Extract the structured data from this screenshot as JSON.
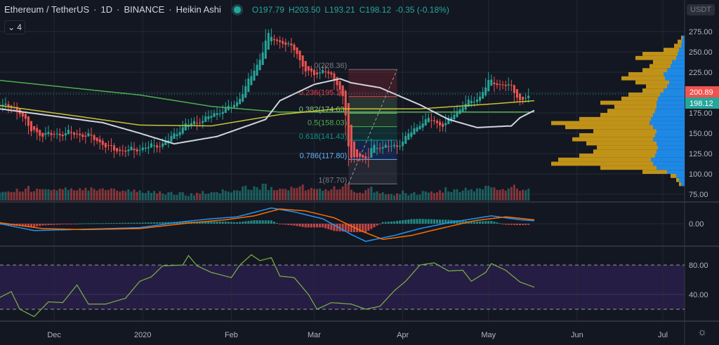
{
  "header": {
    "symbol": "Ethereum / TetherUS",
    "interval": "1D",
    "exchange": "BINANCE",
    "chart_type": "Heikin Ashi",
    "open": "O197.79",
    "high": "H203.50",
    "low": "L193.21",
    "close": "C198.12",
    "change": "-0.35 (-0.18%)",
    "indicators_count": "4",
    "currency": "USDT"
  },
  "colors": {
    "background": "#131722",
    "up": "#26a69a",
    "down": "#ef5350",
    "sma_white": "#d1d4dc",
    "ma_yellow": "#c9c332",
    "ma_green": "#4caf50",
    "macd": "#2196f3",
    "signal": "#ff6d00",
    "rsi": "#7cb342",
    "rsi_band": "#2a1f4a",
    "vp_blue": "#1e88e5",
    "vp_yellow": "#d4a017"
  },
  "chart_data": {
    "type": "candlestick",
    "title": "Ethereum / TetherUS 1D BINANCE Heikin Ashi",
    "day_origin": "2019-11-01",
    "close_path": [
      [
        11,
        186
      ],
      [
        18,
        176
      ],
      [
        21,
        154
      ],
      [
        26,
        148
      ],
      [
        36,
        150
      ],
      [
        43,
        145
      ],
      [
        48,
        133
      ],
      [
        53,
        128
      ],
      [
        58,
        130
      ],
      [
        68,
        137
      ],
      [
        75,
        159
      ],
      [
        82,
        167
      ],
      [
        87,
        176
      ],
      [
        93,
        185
      ],
      [
        97,
        210
      ],
      [
        102,
        245
      ],
      [
        104,
        270
      ],
      [
        109,
        262
      ],
      [
        114,
        253
      ],
      [
        117,
        228
      ],
      [
        120,
        222
      ],
      [
        124,
        228
      ],
      [
        129,
        210
      ],
      [
        131,
        190
      ],
      [
        133,
        115
      ],
      [
        136,
        125
      ],
      [
        139,
        115
      ],
      [
        141,
        135
      ],
      [
        145,
        133
      ],
      [
        150,
        135
      ],
      [
        154,
        150
      ],
      [
        158,
        163
      ],
      [
        161,
        167
      ],
      [
        166,
        159
      ],
      [
        170,
        176
      ],
      [
        173,
        185
      ],
      [
        178,
        193
      ],
      [
        182,
        215
      ],
      [
        185,
        210
      ],
      [
        189,
        208
      ],
      [
        193,
        189
      ],
      [
        196,
        198.12
      ]
    ],
    "ma_white": [
      [
        11,
        180
      ],
      [
        47,
        163
      ],
      [
        60,
        150
      ],
      [
        72,
        137
      ],
      [
        87,
        146
      ],
      [
        104,
        167
      ],
      [
        109,
        190
      ],
      [
        121,
        210
      ],
      [
        130,
        217
      ],
      [
        134,
        212
      ],
      [
        144,
        206
      ],
      [
        158,
        185
      ],
      [
        168,
        167
      ],
      [
        178,
        157
      ],
      [
        190,
        159
      ],
      [
        193,
        169
      ],
      [
        198,
        178
      ]
    ],
    "ma_yellow": [
      [
        11,
        184
      ],
      [
        36,
        172
      ],
      [
        60,
        160
      ],
      [
        85,
        159
      ],
      [
        109,
        173
      ],
      [
        129,
        180
      ],
      [
        158,
        180
      ],
      [
        183,
        186
      ],
      [
        198,
        190
      ]
    ],
    "ma_green": [
      [
        11,
        215
      ],
      [
        60,
        197
      ],
      [
        85,
        183
      ],
      [
        109,
        176
      ],
      [
        134,
        176
      ],
      [
        158,
        176
      ],
      [
        198,
        176
      ]
    ],
    "price_axis": {
      "ticks": [
        "275.00",
        "250.00",
        "225.00",
        "200.89",
        "198.12",
        "175.00",
        "150.00",
        "125.00",
        "100.00",
        "75.00"
      ],
      "ylim": [
        75,
        275
      ]
    },
    "price_labels": {
      "high_marker": "200.89",
      "last_price": "198.12"
    },
    "time_axis": {
      "labels": [
        {
          "t": "Dec",
          "d": 30
        },
        {
          "t": "2020",
          "d": 61
        },
        {
          "t": "Feb",
          "d": 92
        },
        {
          "t": "Mar",
          "d": 121
        },
        {
          "t": "Apr",
          "d": 152
        },
        {
          "t": "May",
          "d": 182
        },
        {
          "t": "Jun",
          "d": 213
        },
        {
          "t": "Jul",
          "d": 243
        }
      ]
    },
    "fibonacci": {
      "start_day": 133,
      "end_day": 150,
      "levels": [
        {
          "ratio": "0",
          "price": 228.36,
          "label": "0(228.36)",
          "color": "#787b86"
        },
        {
          "ratio": "0.236",
          "price": 195.16,
          "label": "0.236(195.16)",
          "color": "#f23645"
        },
        {
          "ratio": "0.382",
          "price": 174.63,
          "label": "0.382(174.63)",
          "color": "#81c784"
        },
        {
          "ratio": "0.5",
          "price": 158.03,
          "label": "0.5(158.03)",
          "color": "#4caf50"
        },
        {
          "ratio": "0.618",
          "price": 141.43,
          "label": "0.618(141.43)",
          "color": "#089981"
        },
        {
          "ratio": "0.786",
          "price": 117.8,
          "label": "0.786(117.80)",
          "color": "#64b5f6"
        },
        {
          "ratio": "1",
          "price": 87.7,
          "label": "1(87.70)",
          "color": "#787b86"
        }
      ]
    },
    "volume_profile": {
      "price_start": 85,
      "step": 5,
      "blue": [
        5,
        8,
        12,
        25,
        40,
        45,
        48,
        42,
        40,
        38,
        40,
        45,
        42,
        40,
        45,
        50,
        48,
        45,
        42,
        40,
        40,
        38,
        35,
        30,
        25,
        22,
        28,
        30,
        25,
        20,
        18,
        12,
        10,
        8,
        5,
        4,
        3,
        0,
        0,
        0,
        0,
        0
      ],
      "total": [
        8,
        12,
        20,
        60,
        120,
        190,
        180,
        150,
        130,
        125,
        140,
        160,
        150,
        130,
        170,
        190,
        150,
        120,
        110,
        100,
        120,
        90,
        80,
        60,
        55,
        70,
        90,
        80,
        60,
        50,
        45,
        70,
        60,
        30,
        15,
        10,
        5,
        0,
        0,
        0,
        0,
        0
      ]
    },
    "macd": {
      "zero_label": "0.00",
      "macd_line": [
        [
          11,
          0
        ],
        [
          23,
          -7
        ],
        [
          36,
          -6
        ],
        [
          60,
          -4
        ],
        [
          75,
          2
        ],
        [
          85,
          5
        ],
        [
          94,
          7
        ],
        [
          106,
          16
        ],
        [
          114,
          12
        ],
        [
          124,
          5
        ],
        [
          134,
          -11
        ],
        [
          139,
          -18
        ],
        [
          149,
          -12
        ],
        [
          158,
          -5
        ],
        [
          168,
          1
        ],
        [
          183,
          8
        ],
        [
          193,
          4
        ],
        [
          198,
          3
        ]
      ],
      "signal_line": [
        [
          11,
          1
        ],
        [
          26,
          -5
        ],
        [
          40,
          -6
        ],
        [
          60,
          -5
        ],
        [
          78,
          1
        ],
        [
          90,
          4
        ],
        [
          100,
          8
        ],
        [
          109,
          15
        ],
        [
          118,
          13
        ],
        [
          128,
          6
        ],
        [
          138,
          -8
        ],
        [
          145,
          -16
        ],
        [
          155,
          -12
        ],
        [
          165,
          -5
        ],
        [
          177,
          3
        ],
        [
          188,
          7
        ],
        [
          198,
          4
        ]
      ]
    },
    "rsi": {
      "upper": 80,
      "lower": 20,
      "ticks": [
        "80.00",
        "40.00"
      ],
      "values": [
        [
          11,
          36
        ],
        [
          15,
          44
        ],
        [
          18,
          20
        ],
        [
          23,
          10
        ],
        [
          28,
          30
        ],
        [
          33,
          29
        ],
        [
          38,
          53
        ],
        [
          42,
          27
        ],
        [
          48,
          27
        ],
        [
          55,
          35
        ],
        [
          60,
          58
        ],
        [
          64,
          64
        ],
        [
          68,
          79
        ],
        [
          75,
          80
        ],
        [
          77,
          93
        ],
        [
          80,
          79
        ],
        [
          85,
          70
        ],
        [
          92,
          63
        ],
        [
          95,
          80
        ],
        [
          99,
          94
        ],
        [
          102,
          86
        ],
        [
          106,
          90
        ],
        [
          109,
          65
        ],
        [
          114,
          63
        ],
        [
          119,
          40
        ],
        [
          122,
          20
        ],
        [
          127,
          29
        ],
        [
          134,
          27
        ],
        [
          139,
          20
        ],
        [
          144,
          24
        ],
        [
          149,
          45
        ],
        [
          153,
          58
        ],
        [
          158,
          80
        ],
        [
          163,
          83
        ],
        [
          168,
          72
        ],
        [
          173,
          73
        ],
        [
          176,
          58
        ],
        [
          181,
          70
        ],
        [
          183,
          82
        ],
        [
          188,
          73
        ],
        [
          193,
          57
        ],
        [
          198,
          50
        ]
      ]
    }
  }
}
